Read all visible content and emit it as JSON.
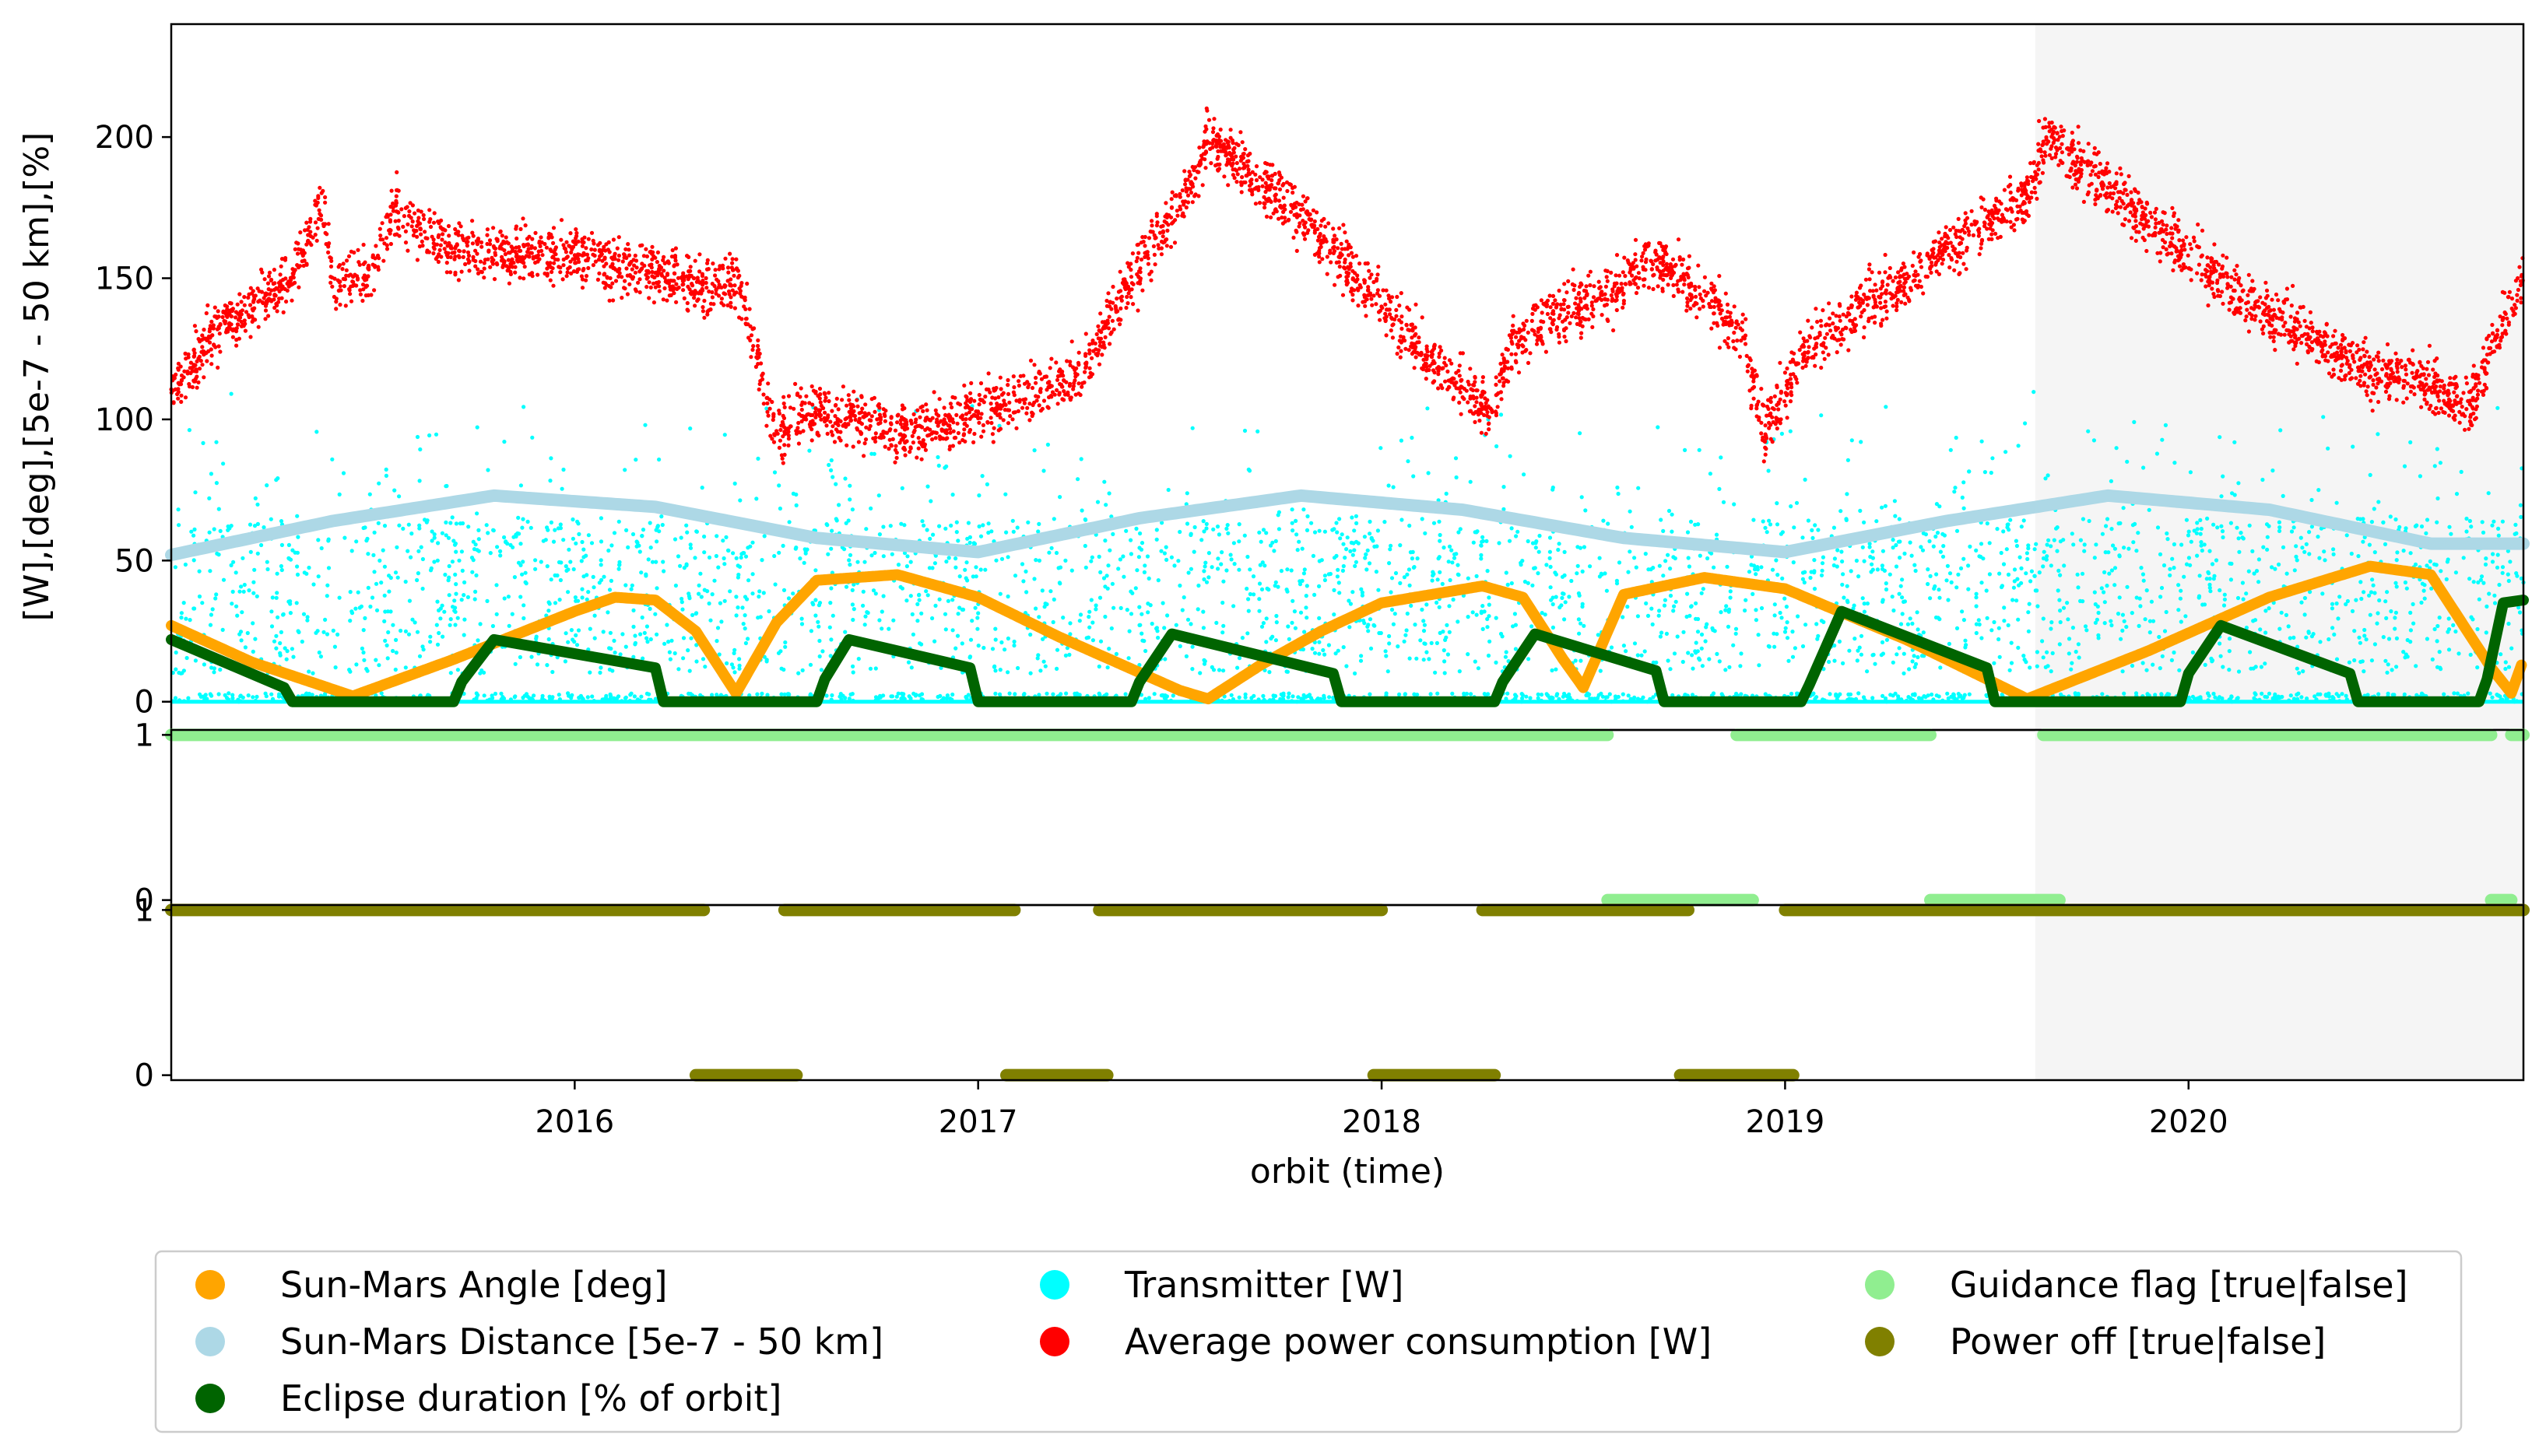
{
  "chart_data": {
    "type": "scatter",
    "title": "",
    "xlabel": "orbit (time)",
    "ylabel": "[W],[deg],[5e-7 - 50 km],[%]",
    "x_ticks": [
      "2016",
      "2017",
      "2018",
      "2019",
      "2020"
    ],
    "x_tick_years": [
      2016,
      2017,
      2018,
      2019,
      2020
    ],
    "xlim": [
      2015.0,
      2020.83
    ],
    "shaded_region": [
      2019.62,
      2020.83
    ],
    "panels": [
      {
        "name": "main",
        "ylim": [
          -10,
          240
        ],
        "yticks": [
          "0",
          "50",
          "100",
          "150",
          "200"
        ],
        "ytick_values": [
          0,
          50,
          100,
          150,
          200
        ]
      },
      {
        "name": "guidance",
        "ylim": [
          -0.03,
          1.03
        ],
        "yticks": [
          "0",
          "1"
        ],
        "ytick_values": [
          0,
          1
        ]
      },
      {
        "name": "power",
        "ylim": [
          -0.03,
          1.03
        ],
        "yticks": [
          "0",
          "1"
        ],
        "ytick_values": [
          0,
          1
        ]
      }
    ],
    "colors": {
      "sun_mars_angle": "#ffa500",
      "sun_mars_distance": "#add8e6",
      "eclipse": "#006400",
      "transmitter": "#00ffff",
      "power": "#ff0000",
      "guidance": "#90ee90",
      "power_off": "#808000",
      "shade": "#f5f5f5"
    },
    "series": [
      {
        "key": "sun_mars_angle",
        "name": "Sun-Mars Angle [deg]",
        "x": [
          2015.0,
          2015.2,
          2015.45,
          2015.7,
          2016.0,
          2016.1,
          2016.2,
          2016.3,
          2016.4,
          2016.5,
          2016.6,
          2016.8,
          2017.0,
          2017.2,
          2017.5,
          2017.57,
          2017.7,
          2017.85,
          2018.0,
          2018.25,
          2018.35,
          2018.45,
          2018.5,
          2018.6,
          2018.8,
          2019.0,
          2019.3,
          2019.6,
          2019.9,
          2020.2,
          2020.45,
          2020.6,
          2020.75,
          2020.8,
          2020.83
        ],
        "y": [
          27,
          14,
          2,
          15,
          32,
          37,
          36,
          25,
          3,
          28,
          43,
          45,
          37,
          23,
          4,
          1,
          13,
          25,
          35,
          41,
          37,
          15,
          5,
          38,
          44,
          40,
          22,
          1,
          18,
          37,
          48,
          45,
          12,
          3,
          15
        ]
      },
      {
        "key": "sun_mars_distance",
        "name": "Sun-Mars Distance [5e-7 - 50 km]",
        "x": [
          2015.0,
          2015.4,
          2015.8,
          2016.2,
          2016.6,
          2017.0,
          2017.4,
          2017.8,
          2018.2,
          2018.6,
          2019.0,
          2019.4,
          2019.8,
          2020.2,
          2020.6,
          2020.83
        ],
        "y": [
          52,
          64,
          73,
          69,
          58,
          53,
          65,
          73,
          68,
          58,
          53,
          64,
          73,
          68,
          56,
          56
        ]
      },
      {
        "key": "eclipse",
        "name": "Eclipse duration [% of orbit]",
        "x": [
          2015.0,
          2015.28,
          2015.3,
          2015.7,
          2015.72,
          2015.8,
          2016.2,
          2016.22,
          2016.6,
          2016.62,
          2016.68,
          2016.98,
          2017.0,
          2017.38,
          2017.4,
          2017.48,
          2017.88,
          2017.9,
          2018.28,
          2018.3,
          2018.38,
          2018.68,
          2018.7,
          2019.04,
          2019.06,
          2019.14,
          2019.5,
          2019.52,
          2019.98,
          2020.0,
          2020.08,
          2020.4,
          2020.42,
          2020.72,
          2020.74,
          2020.78,
          2020.83
        ],
        "y": [
          22,
          5,
          0,
          0,
          7,
          22,
          12,
          0,
          0,
          8,
          22,
          12,
          0,
          0,
          7,
          24,
          10,
          0,
          0,
          7,
          24,
          11,
          0,
          0,
          6,
          32,
          12,
          0,
          0,
          10,
          27,
          10,
          0,
          0,
          8,
          35,
          36
        ]
      },
      {
        "key": "transmitter",
        "name": "Transmitter [W]"
      },
      {
        "key": "power",
        "name": "Average power consumption [W]",
        "x": [
          2015.0,
          2015.1,
          2015.3,
          2015.38,
          2015.4,
          2015.5,
          2015.55,
          2015.7,
          2016.0,
          2016.3,
          2016.4,
          2016.5,
          2016.6,
          2016.85,
          2017.1,
          2017.25,
          2017.4,
          2017.52,
          2017.57,
          2017.8,
          2018.0,
          2018.15,
          2018.27,
          2018.32,
          2018.4,
          2018.6,
          2018.66,
          2018.82,
          2018.9,
          2018.95,
          2019.05,
          2019.3,
          2019.5,
          2019.6,
          2019.65,
          2019.8,
          2020.0,
          2020.2,
          2020.4,
          2020.6,
          2020.7,
          2020.75,
          2020.83
        ],
        "y": [
          110,
          130,
          150,
          178,
          148,
          150,
          175,
          160,
          158,
          148,
          150,
          95,
          103,
          95,
          108,
          115,
          155,
          180,
          200,
          172,
          140,
          118,
          102,
          125,
          135,
          148,
          158,
          142,
          128,
          95,
          125,
          150,
          170,
          180,
          200,
          182,
          158,
          138,
          120,
          112,
          105,
          125,
          150
        ]
      },
      {
        "key": "guidance",
        "name": "Guidance flag [true|false]",
        "segments": [
          {
            "x0": 2015.0,
            "x1": 2018.56,
            "value": 1
          },
          {
            "x0": 2018.56,
            "x1": 2018.92,
            "value": 0
          },
          {
            "x0": 2018.88,
            "x1": 2019.36,
            "value": 1
          },
          {
            "x0": 2019.36,
            "x1": 2019.68,
            "value": 0
          },
          {
            "x0": 2019.64,
            "x1": 2020.75,
            "value": 1
          },
          {
            "x0": 2020.75,
            "x1": 2020.8,
            "value": 0
          },
          {
            "x0": 2020.8,
            "x1": 2020.83,
            "value": 1
          }
        ]
      },
      {
        "key": "power_off",
        "name": "Power off [true|false]",
        "segments": [
          {
            "x0": 2015.0,
            "x1": 2016.32,
            "value": 1
          },
          {
            "x0": 2016.3,
            "x1": 2016.55,
            "value": 0
          },
          {
            "x0": 2016.52,
            "x1": 2017.09,
            "value": 1
          },
          {
            "x0": 2017.07,
            "x1": 2017.32,
            "value": 0
          },
          {
            "x0": 2017.3,
            "x1": 2018.0,
            "value": 1
          },
          {
            "x0": 2017.98,
            "x1": 2018.28,
            "value": 0
          },
          {
            "x0": 2018.25,
            "x1": 2018.76,
            "value": 1
          },
          {
            "x0": 2018.74,
            "x1": 2019.02,
            "value": 0
          },
          {
            "x0": 2019.0,
            "x1": 2020.83,
            "value": 1
          }
        ]
      }
    ],
    "legend": {
      "location": "bottom-center",
      "columns": 3,
      "entries": [
        {
          "key": "sun_mars_angle",
          "label": "Sun-Mars Angle [deg]"
        },
        {
          "key": "sun_mars_distance",
          "label": "Sun-Mars Distance [5e-7 - 50 km]"
        },
        {
          "key": "eclipse",
          "label": "Eclipse duration [% of orbit]"
        },
        {
          "key": "transmitter",
          "label": "Transmitter [W]"
        },
        {
          "key": "power",
          "label": "Average power consumption [W]"
        },
        {
          "key": "guidance",
          "label": "Guidance flag [true|false]"
        },
        {
          "key": "power_off",
          "label": "Power off [true|false]"
        }
      ]
    }
  }
}
